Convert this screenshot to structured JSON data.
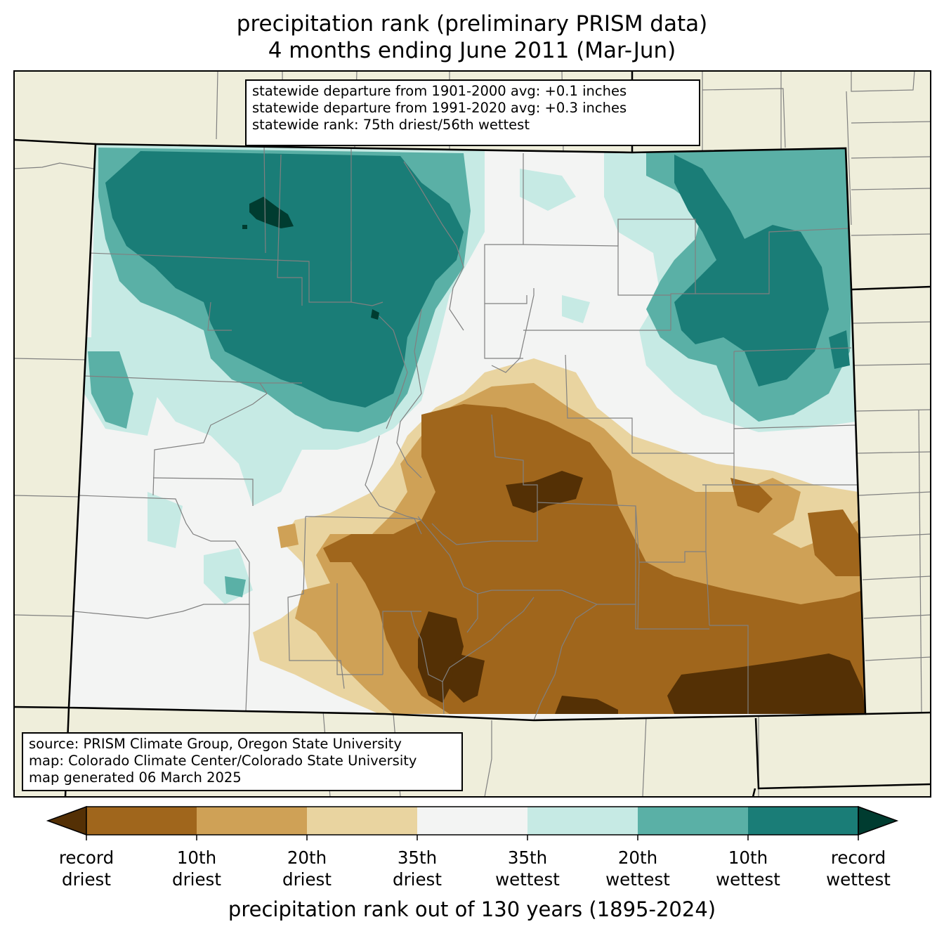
{
  "title_line1": "precipitation rank (preliminary PRISM data)",
  "title_line2": "4 months ending June 2011 (Mar-Jun)",
  "stats": [
    "statewide departure from 1901-2000 avg: +0.1 inches",
    "statewide departure from 1991-2020 avg: +0.3 inches",
    "statewide rank: 75th driest/56th wettest"
  ],
  "source": [
    "source: PRISM Climate Group, Oregon State University",
    "map: Colorado Climate Center/Colorado State University",
    "map generated 06 March 2025"
  ],
  "colorbar": {
    "title": "precipitation rank out of 130 years (1895-2024)",
    "colors": [
      "#543005",
      "#a0661c",
      "#cfa156",
      "#e9d4a0",
      "#f3f4f3",
      "#c6eae4",
      "#5ab0a6",
      "#1a7d77",
      "#003c30"
    ],
    "ticks": [
      {
        "line1": "record",
        "line2": "driest"
      },
      {
        "line1": "10th",
        "line2": "driest"
      },
      {
        "line1": "20th",
        "line2": "driest"
      },
      {
        "line1": "35th",
        "line2": "driest"
      },
      {
        "line1": "35th",
        "line2": "wettest"
      },
      {
        "line1": "20th",
        "line2": "wettest"
      },
      {
        "line1": "10th",
        "line2": "wettest"
      },
      {
        "line1": "record",
        "line2": "wettest"
      }
    ]
  },
  "map_colors": {
    "land": "#efeedb",
    "neutral": "#f3f4f3",
    "wet_35": "#c6eae4",
    "wet_20": "#5ab0a6",
    "wet_10": "#1a7d77",
    "wet_record": "#003c30",
    "dry_35": "#e9d4a0",
    "dry_20": "#cfa156",
    "dry_10": "#a0661c",
    "dry_record": "#543005",
    "border": "#000000",
    "county": "#808080"
  }
}
